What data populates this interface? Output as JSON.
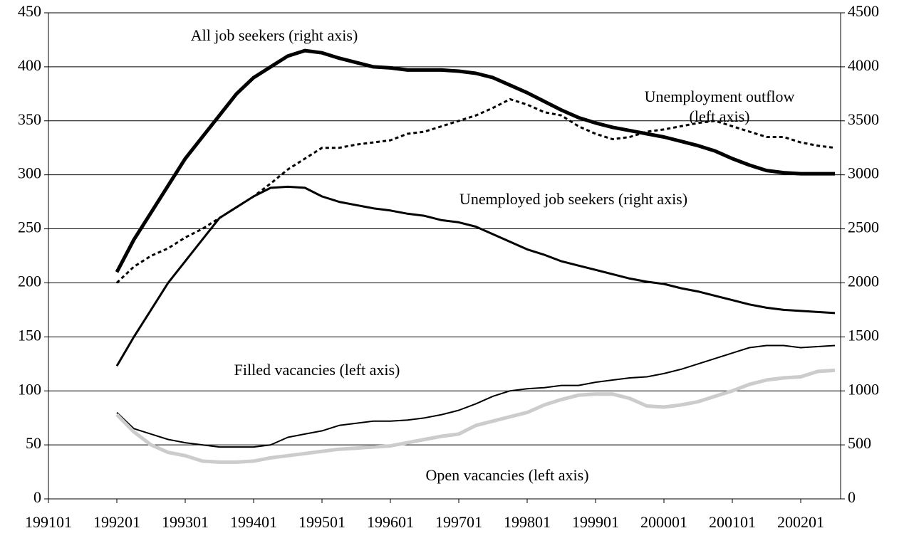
{
  "chart_data": {
    "type": "line",
    "x": [
      "199201",
      "199204",
      "199207",
      "199210",
      "199301",
      "199304",
      "199307",
      "199310",
      "199401",
      "199404",
      "199407",
      "199410",
      "199501",
      "199504",
      "199507",
      "199510",
      "199601",
      "199604",
      "199607",
      "199610",
      "199701",
      "199704",
      "199707",
      "199710",
      "199801",
      "199804",
      "199807",
      "199810",
      "199901",
      "199904",
      "199907",
      "199910",
      "200001",
      "200004",
      "200007",
      "200010",
      "200101",
      "200104",
      "200107",
      "200110",
      "200201",
      "200204",
      "200207"
    ],
    "xlim": [
      "199101",
      "200208"
    ],
    "xticks": [
      "199101",
      "199201",
      "199301",
      "199401",
      "199501",
      "199601",
      "199701",
      "199801",
      "199901",
      "200001",
      "200101",
      "200201"
    ],
    "ylim": [
      0,
      450
    ],
    "yticks": [
      0,
      50,
      100,
      150,
      200,
      250,
      300,
      350,
      400,
      450
    ],
    "y2lim": [
      0,
      4500
    ],
    "y2ticks": [
      0,
      500,
      1000,
      1500,
      2000,
      2500,
      3000,
      3500,
      4000,
      4500
    ],
    "grid": true,
    "series": [
      {
        "name": "All job seekers (right axis)",
        "color": "#000000",
        "width": 5,
        "axis": "y2",
        "values": [
          2100,
          2400,
          2650,
          2900,
          3150,
          3350,
          3550,
          3750,
          3900,
          4000,
          4100,
          4150,
          4130,
          4080,
          4040,
          4000,
          3990,
          3970,
          3970,
          3970,
          3960,
          3940,
          3900,
          3830,
          3760,
          3680,
          3600,
          3530,
          3480,
          3440,
          3410,
          3380,
          3350,
          3310,
          3270,
          3220,
          3150,
          3090,
          3040,
          3020,
          3010,
          3010,
          3010
        ]
      },
      {
        "name": "Unemployment outflow (left axis)",
        "color": "#000000",
        "width": 3,
        "dash": true,
        "values": [
          200,
          215,
          225,
          232,
          242,
          250,
          260,
          270,
          280,
          292,
          305,
          315,
          325,
          325,
          328,
          330,
          332,
          338,
          340,
          345,
          350,
          355,
          362,
          370,
          365,
          358,
          355,
          345,
          338,
          333,
          335,
          340,
          342,
          345,
          348,
          350,
          345,
          340,
          335,
          335,
          330,
          327,
          325
        ]
      },
      {
        "name": "Unemployed job seekers (right axis)",
        "color": "#000000",
        "width": 3,
        "axis": "y2",
        "values": [
          1230,
          1500,
          1750,
          2000,
          2200,
          2400,
          2600,
          2700,
          2800,
          2880,
          2890,
          2880,
          2800,
          2750,
          2720,
          2690,
          2670,
          2640,
          2620,
          2580,
          2560,
          2520,
          2450,
          2380,
          2310,
          2260,
          2200,
          2160,
          2120,
          2080,
          2040,
          2010,
          1990,
          1950,
          1920,
          1880,
          1840,
          1800,
          1770,
          1750,
          1740,
          1730,
          1720
        ]
      },
      {
        "name": "Filled vacancies (left axis)",
        "color": "#000000",
        "width": 2,
        "values": [
          80,
          65,
          60,
          55,
          52,
          50,
          48,
          48,
          48,
          50,
          57,
          60,
          63,
          68,
          70,
          72,
          72,
          73,
          75,
          78,
          82,
          88,
          95,
          100,
          102,
          103,
          105,
          105,
          108,
          110,
          112,
          113,
          116,
          120,
          125,
          130,
          135,
          140,
          142,
          142,
          140,
          141,
          142
        ]
      },
      {
        "name": "Open vacancies (left axis)",
        "color": "#cccccc",
        "width": 5,
        "values": [
          78,
          62,
          50,
          43,
          40,
          35,
          34,
          34,
          35,
          38,
          40,
          42,
          44,
          46,
          47,
          48,
          49,
          52,
          55,
          58,
          60,
          68,
          72,
          76,
          80,
          87,
          92,
          96,
          97,
          97,
          93,
          86,
          85,
          87,
          90,
          95,
          100,
          106,
          110,
          112,
          113,
          118,
          119
        ]
      }
    ]
  }
}
